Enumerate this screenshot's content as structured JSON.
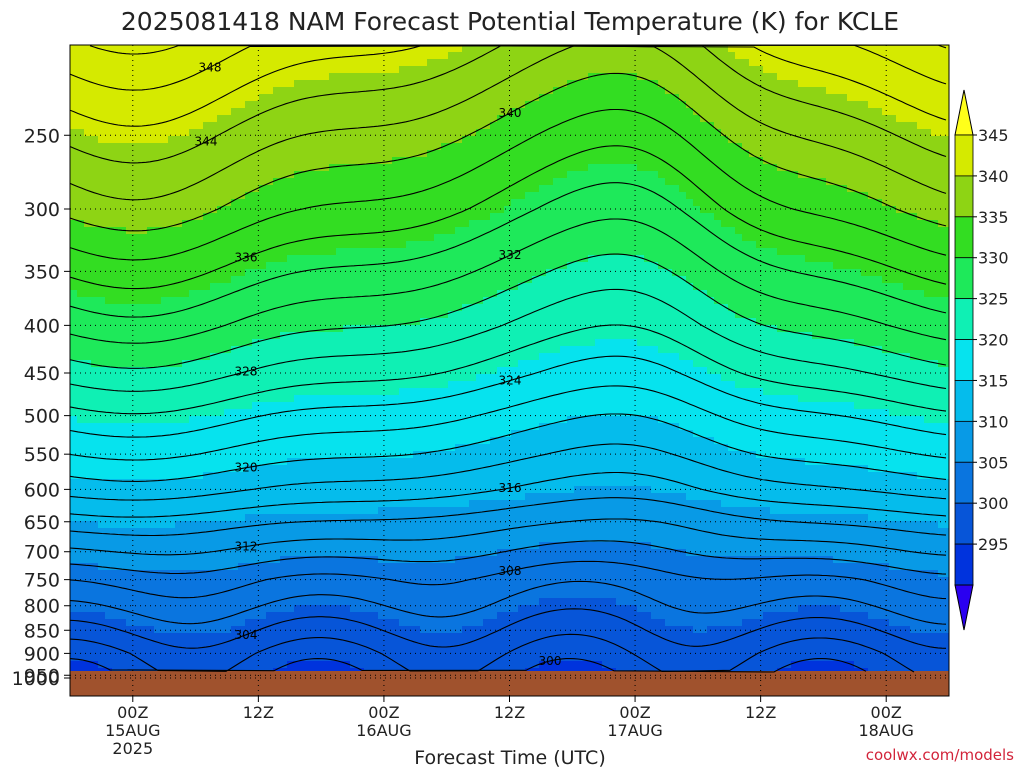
{
  "chart_data": {
    "type": "contour",
    "title": "2025081418 NAM Forecast Potential Temperature (K) for KCLE",
    "xlabel": "Forecast Time (UTC)",
    "ylabel": "",
    "credit": "coolwx.com/models",
    "x_ticks": [
      {
        "label": "00Z",
        "sub": "15AUG",
        "sub2": "2025",
        "hour": 6
      },
      {
        "label": "12Z",
        "sub": "",
        "sub2": "",
        "hour": 18
      },
      {
        "label": "00Z",
        "sub": "16AUG",
        "sub2": "",
        "hour": 30
      },
      {
        "label": "12Z",
        "sub": "",
        "sub2": "",
        "hour": 42
      },
      {
        "label": "00Z",
        "sub": "17AUG",
        "sub2": "",
        "hour": 54
      },
      {
        "label": "12Z",
        "sub": "",
        "sub2": "",
        "hour": 66
      },
      {
        "label": "00Z",
        "sub": "18AUG",
        "sub2": "",
        "hour": 78
      }
    ],
    "x_range_hours": [
      0,
      84
    ],
    "y_ticks": [
      250,
      300,
      350,
      400,
      450,
      500,
      550,
      600,
      650,
      700,
      750,
      800,
      850,
      900,
      950,
      1000
    ],
    "y_range_hpa": [
      200,
      1000
    ],
    "y_scale": "log-pressure",
    "colorbar": {
      "levels": [
        295,
        300,
        305,
        310,
        315,
        320,
        325,
        330,
        335,
        340,
        345
      ],
      "labels": [
        "295",
        "300",
        "305",
        "310",
        "315",
        "320",
        "325",
        "330",
        "335",
        "340",
        "345"
      ],
      "colors": [
        "#2a00f0",
        "#0033dd",
        "#0755d8",
        "#0a75df",
        "#089ae6",
        "#05bcec",
        "#06e3ee",
        "#0ff0b4",
        "#1ee95a",
        "#33dd22",
        "#8ed414",
        "#d5ea00",
        "#ffff1a"
      ]
    },
    "contour_labels": [
      "348",
      "344",
      "340",
      "336",
      "332",
      "328",
      "324",
      "320",
      "316",
      "312",
      "308",
      "304",
      "300"
    ],
    "contour_profile": [
      {
        "p": 1000,
        "theta": 299.5
      },
      {
        "p": 950,
        "theta": 300.5
      },
      {
        "p": 900,
        "theta": 302
      },
      {
        "p": 850,
        "theta": 304
      },
      {
        "p": 800,
        "theta": 306
      },
      {
        "p": 750,
        "theta": 308
      },
      {
        "p": 700,
        "theta": 311
      },
      {
        "p": 650,
        "theta": 314
      },
      {
        "p": 600,
        "theta": 317.5
      },
      {
        "p": 550,
        "theta": 320.5
      },
      {
        "p": 500,
        "theta": 323.5
      },
      {
        "p": 450,
        "theta": 327
      },
      {
        "p": 400,
        "theta": 330.5
      },
      {
        "p": 350,
        "theta": 334
      },
      {
        "p": 300,
        "theta": 338
      },
      {
        "p": 250,
        "theta": 342
      },
      {
        "p": 200,
        "theta": 347
      }
    ],
    "ground_color": "#a0522d"
  }
}
